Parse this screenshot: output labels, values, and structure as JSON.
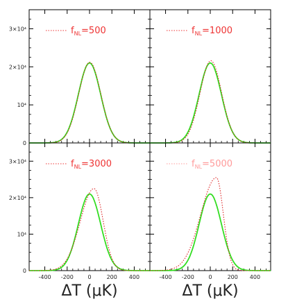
{
  "chart_data": [
    {
      "type": "line",
      "xlim": [
        -540,
        540
      ],
      "ylim": [
        0,
        35000
      ],
      "x_ticks": [
        -400,
        -200,
        0,
        200,
        400
      ],
      "y_ticks": [
        {
          "value": 0,
          "label": "0"
        },
        {
          "value": 10000,
          "label": "10⁴"
        },
        {
          "value": 20000,
          "label": "2×10⁴"
        },
        {
          "value": 30000,
          "label": "3×10⁴"
        }
      ],
      "legend": {
        "prefix": "f",
        "subscript": "NL",
        "value": "=500",
        "placement": "top-center"
      },
      "series": [
        {
          "style": "solid",
          "color": "#33dd22",
          "shape": {
            "kind": "gauss",
            "mean": 0,
            "sigma": 100,
            "peak": 21000
          }
        },
        {
          "style": "dotted",
          "color": "#dd2222",
          "shape": {
            "kind": "gauss",
            "mean": 2,
            "sigma": 99,
            "peak": 21200
          }
        }
      ]
    },
    {
      "type": "line",
      "xlim": [
        -540,
        540
      ],
      "ylim": [
        0,
        35000
      ],
      "x_ticks": [
        -400,
        -200,
        0,
        200,
        400
      ],
      "y_ticks": [
        {
          "value": 0,
          "label": "0"
        },
        {
          "value": 10000,
          "label": "10⁴"
        },
        {
          "value": 20000,
          "label": "2×10⁴"
        },
        {
          "value": 30000,
          "label": "3×10⁴"
        }
      ],
      "legend": {
        "prefix": "f",
        "subscript": "NL",
        "value": "=1000",
        "placement": "top-center"
      },
      "series": [
        {
          "style": "solid",
          "color": "#33dd22",
          "shape": {
            "kind": "gauss",
            "mean": 0,
            "sigma": 100,
            "peak": 21000
          }
        },
        {
          "style": "dotted",
          "color": "#dd2222",
          "shape": {
            "kind": "gauss",
            "mean": 5,
            "sigma": 97,
            "peak": 21600
          }
        }
      ]
    },
    {
      "type": "line",
      "xlim": [
        -540,
        540
      ],
      "ylim": [
        0,
        35000
      ],
      "x_ticks": [
        -400,
        -200,
        0,
        200,
        400
      ],
      "y_ticks": [
        {
          "value": 0,
          "label": "0"
        },
        {
          "value": 10000,
          "label": "10⁴"
        },
        {
          "value": 20000,
          "label": "2×10⁴"
        },
        {
          "value": 30000,
          "label": "3×10⁴"
        }
      ],
      "legend": {
        "prefix": "f",
        "subscript": "NL",
        "value": "=3000",
        "placement": "top-center"
      },
      "series": [
        {
          "style": "solid",
          "color": "#33dd22",
          "shape": {
            "kind": "gauss",
            "mean": 0,
            "sigma": 100,
            "peak": 21000
          }
        },
        {
          "style": "dotted",
          "color": "#dd2222",
          "shape": {
            "kind": "skew",
            "mode": 40,
            "sigma_left": 122,
            "sigma_right": 82,
            "peak": 22500
          }
        }
      ]
    },
    {
      "type": "line",
      "xlim": [
        -540,
        540
      ],
      "ylim": [
        0,
        35000
      ],
      "x_ticks": [
        -400,
        -200,
        0,
        200,
        400
      ],
      "y_ticks": [
        {
          "value": 0,
          "label": "0"
        },
        {
          "value": 10000,
          "label": "10⁴"
        },
        {
          "value": 20000,
          "label": "2×10⁴"
        },
        {
          "value": 30000,
          "label": "3×10⁴"
        }
      ],
      "legend": {
        "prefix": "f",
        "subscript": "NL",
        "value": "=5000",
        "placement": "top-center"
      },
      "series": [
        {
          "style": "solid",
          "color": "#33dd22",
          "shape": {
            "kind": "gauss",
            "mean": 0,
            "sigma": 100,
            "peak": 21000
          }
        },
        {
          "style": "dotted",
          "color": "#dd2222",
          "shape": {
            "kind": "skew",
            "mode": 55,
            "sigma_left": 140,
            "sigma_right": 62,
            "peak": 25500
          }
        }
      ]
    }
  ],
  "axis_text": {
    "xlabel": "ΔT (μK)"
  },
  "colors": {
    "gaussian": "#33dd22",
    "non_gaussian": "#dd2222",
    "legend_top": "#ee3333",
    "legend_bottom_right": "#ff9a9a"
  }
}
